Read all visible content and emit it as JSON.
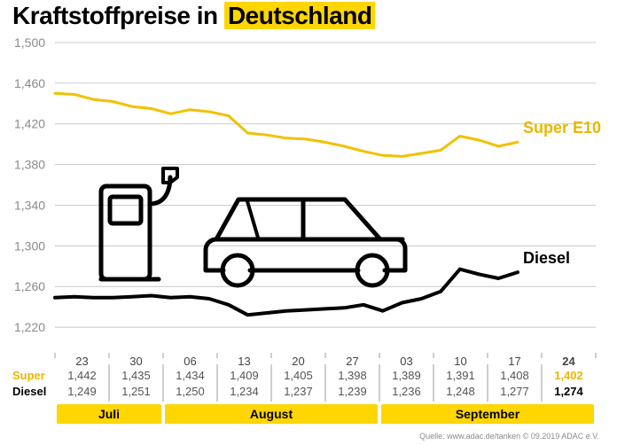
{
  "title": {
    "pre": "Kraftstoffpreise in ",
    "highlight": "Deutschland",
    "highlight_bg": "#ffd600"
  },
  "chart": {
    "type": "line",
    "ylim": [
      1200,
      1500
    ],
    "y_ticks": [
      1500,
      1460,
      1420,
      1380,
      1340,
      1300,
      1260,
      1220
    ],
    "y_tick_labels": [
      "1,500",
      "1,460",
      "1,420",
      "1,380",
      "1,340",
      "1,300",
      "1,260",
      "1,220"
    ],
    "y_tick_fontsize": 14,
    "y_tick_color": "#8a8a8a",
    "gridline_color": "#bdbdbd",
    "baseline_color": "#000000",
    "background": "#ffffff",
    "series": {
      "super": {
        "name": "Super E10",
        "color": "#f2c100",
        "label_color": "#e8b800",
        "line_width": 3,
        "points": [
          1450,
          1449,
          1444,
          1442,
          1437,
          1435,
          1430,
          1434,
          1432,
          1428,
          1411,
          1409,
          1406,
          1405,
          1402,
          1398,
          1393,
          1389,
          1388,
          1391,
          1394,
          1408,
          1404,
          1398,
          1402
        ]
      },
      "diesel": {
        "name": "Diesel",
        "color": "#000000",
        "label_color": "#000000",
        "line_width": 4,
        "points": [
          1249,
          1250,
          1249,
          1249,
          1250,
          1251,
          1249,
          1250,
          1248,
          1242,
          1232,
          1234,
          1236,
          1237,
          1238,
          1239,
          1242,
          1236,
          1244,
          1248,
          1255,
          1277,
          1272,
          1268,
          1274
        ]
      }
    },
    "n_points": 25
  },
  "table": {
    "label_col_width": 48,
    "data_col_width": 61,
    "date_labels": [
      "23",
      "30",
      "06",
      "13",
      "20",
      "27",
      "03",
      "10",
      "17",
      "24"
    ],
    "super_row": {
      "label": "Super",
      "color": "#e8b800",
      "values": [
        "1,442",
        "1,435",
        "1,434",
        "1,409",
        "1,405",
        "1,398",
        "1,389",
        "1,391",
        "1,408",
        "1,402"
      ]
    },
    "diesel_row": {
      "label": "Diesel",
      "color": "#000000",
      "values": [
        "1,249",
        "1,251",
        "1,250",
        "1,234",
        "1,237",
        "1,239",
        "1,236",
        "1,248",
        "1,277",
        "1,274"
      ]
    },
    "last_col_bold": true,
    "fontsize": 13,
    "tick_color": "#9e9e9e"
  },
  "months": {
    "bg": "#ffd600",
    "segments": [
      {
        "label": "Juli",
        "start_col": 0,
        "span": 2
      },
      {
        "label": "August",
        "start_col": 2,
        "span": 4
      },
      {
        "label": "September",
        "start_col": 6,
        "span": 4
      }
    ]
  },
  "source": "Quelle: www.adac.de/tanken    © 09.2019  ADAC e.V."
}
